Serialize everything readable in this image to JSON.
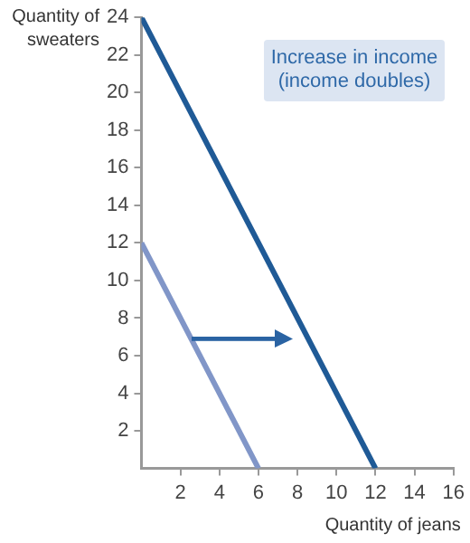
{
  "chart_data": {
    "type": "line",
    "xlabel": "Quantity of jeans",
    "ylabel": "Quantity of sweaters",
    "annotations": [
      "Increase in income (income doubles)"
    ],
    "xlim": [
      0,
      16
    ],
    "ylim": [
      0,
      24
    ],
    "xticks": [
      2,
      4,
      6,
      8,
      10,
      12,
      14,
      16
    ],
    "yticks": [
      2,
      4,
      6,
      8,
      10,
      12,
      14,
      16,
      18,
      20,
      22,
      24
    ],
    "marker": "none",
    "line_style": "solid",
    "series": [
      {
        "color": "#8196c8",
        "x": [
          0,
          6
        ],
        "values": [
          12,
          0
        ]
      },
      {
        "color": "#1f5a96",
        "x": [
          0,
          12
        ],
        "values": [
          24,
          0
        ]
      }
    ]
  }
}
